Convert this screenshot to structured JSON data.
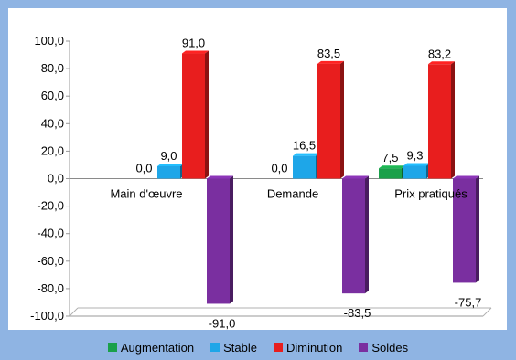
{
  "chart_data": {
    "type": "bar",
    "categories": [
      "Main d'œuvre",
      "Demande",
      "Prix pratiqués"
    ],
    "series": [
      {
        "name": "Augmentation",
        "values": [
          0.0,
          0.0,
          7.5
        ],
        "labels": [
          "0,0",
          "0,0",
          "7,5"
        ],
        "color": "#1aa04a"
      },
      {
        "name": "Stable",
        "values": [
          9.0,
          16.5,
          9.3
        ],
        "labels": [
          "9,0",
          "16,5",
          "9,3"
        ],
        "color": "#1ea6e8"
      },
      {
        "name": "Diminution",
        "values": [
          91.0,
          83.5,
          83.2
        ],
        "labels": [
          "91,0",
          "83,5",
          "83,2"
        ],
        "color": "#e81e1e"
      },
      {
        "name": "Soldes",
        "values": [
          -91.0,
          -83.5,
          -75.7
        ],
        "labels": [
          "-91,0",
          "-83,5",
          "-75,7"
        ],
        "color": "#7a2fa0"
      }
    ],
    "yticks": [
      100,
      80,
      60,
      40,
      20,
      0,
      -20,
      -40,
      -60,
      -80,
      -100
    ],
    "ytick_labels": [
      "100,0",
      "80,0",
      "60,0",
      "40,0",
      "20,0",
      "0,0",
      "-20,0",
      "-40,0",
      "-60,0",
      "-80,0",
      "-100,0"
    ],
    "ylim": [
      -100,
      100
    ],
    "title": "",
    "xlabel": "",
    "ylabel": "",
    "legend": "bottom",
    "grid": false
  }
}
